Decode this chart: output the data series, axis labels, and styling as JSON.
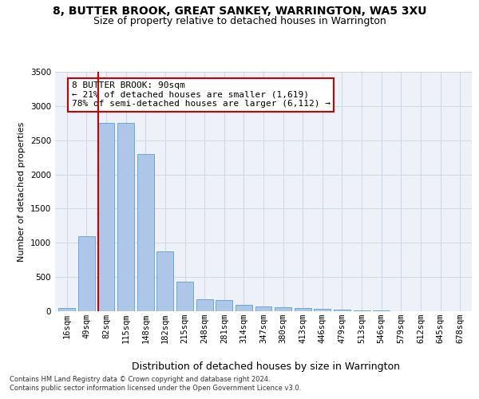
{
  "title": "8, BUTTER BROOK, GREAT SANKEY, WARRINGTON, WA5 3XU",
  "subtitle": "Size of property relative to detached houses in Warrington",
  "xlabel": "Distribution of detached houses by size in Warrington",
  "ylabel": "Number of detached properties",
  "categories": [
    "16sqm",
    "49sqm",
    "82sqm",
    "115sqm",
    "148sqm",
    "182sqm",
    "215sqm",
    "248sqm",
    "281sqm",
    "314sqm",
    "347sqm",
    "380sqm",
    "413sqm",
    "446sqm",
    "479sqm",
    "513sqm",
    "546sqm",
    "579sqm",
    "612sqm",
    "645sqm",
    "678sqm"
  ],
  "values": [
    50,
    1100,
    2750,
    2750,
    2300,
    870,
    430,
    170,
    165,
    90,
    65,
    55,
    45,
    30,
    20,
    15,
    10,
    5,
    5,
    5,
    5
  ],
  "bar_color": "#aec6e8",
  "bar_edge_color": "#5a9fd4",
  "vline_index": 2,
  "vline_color": "#cc0000",
  "ylim": [
    0,
    3500
  ],
  "yticks": [
    0,
    500,
    1000,
    1500,
    2000,
    2500,
    3000,
    3500
  ],
  "annotation_title": "8 BUTTER BROOK: 90sqm",
  "annotation_line1": "← 21% of detached houses are smaller (1,619)",
  "annotation_line2": "78% of semi-detached houses are larger (6,112) →",
  "annotation_box_color": "#ffffff",
  "annotation_box_edge": "#cc0000",
  "grid_color": "#d0d8e8",
  "bg_color": "#eef2f8",
  "footer1": "Contains HM Land Registry data © Crown copyright and database right 2024.",
  "footer2": "Contains public sector information licensed under the Open Government Licence v3.0.",
  "title_fontsize": 10,
  "subtitle_fontsize": 9,
  "ylabel_fontsize": 8,
  "xlabel_fontsize": 9,
  "tick_fontsize": 7.5,
  "annotation_fontsize": 8,
  "footer_fontsize": 6
}
